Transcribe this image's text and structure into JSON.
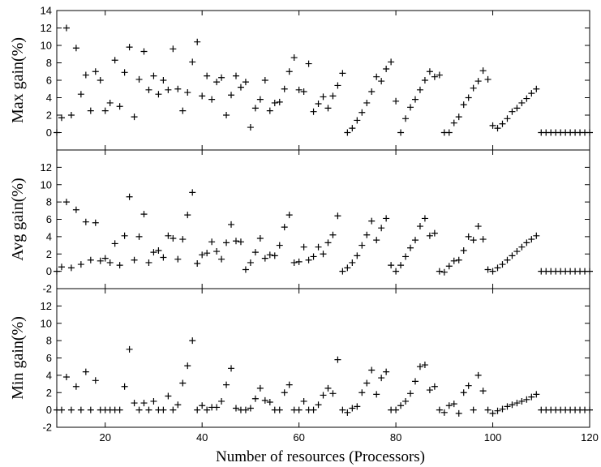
{
  "chart_data": {
    "type": "scatter",
    "xlabel": "Number of resources (Processors)",
    "xlim": [
      10,
      120
    ],
    "x_ticks": [
      20,
      40,
      60,
      80,
      100,
      120
    ],
    "x": [
      10,
      11,
      12,
      13,
      14,
      15,
      16,
      17,
      18,
      19,
      20,
      21,
      22,
      23,
      24,
      25,
      26,
      27,
      28,
      29,
      30,
      31,
      32,
      33,
      34,
      35,
      36,
      37,
      38,
      39,
      40,
      41,
      42,
      43,
      44,
      45,
      46,
      47,
      48,
      49,
      50,
      51,
      52,
      53,
      54,
      55,
      56,
      57,
      58,
      59,
      60,
      61,
      62,
      63,
      64,
      65,
      66,
      67,
      68,
      69,
      70,
      71,
      72,
      73,
      74,
      75,
      76,
      77,
      78,
      79,
      80,
      81,
      82,
      83,
      84,
      85,
      86,
      87,
      88,
      89,
      90,
      91,
      92,
      93,
      94,
      95,
      96,
      97,
      98,
      99,
      100,
      101,
      102,
      103,
      104,
      105,
      106,
      107,
      108,
      109,
      110,
      111,
      112,
      113,
      114,
      115,
      116,
      117,
      118,
      119,
      120
    ],
    "panels": [
      {
        "ylabel": "Max gain(%)",
        "ylim": [
          -2,
          14
        ],
        "y_ticks": [
          0,
          2,
          4,
          6,
          8,
          10,
          12,
          14
        ],
        "y_tick_labels": [
          "0",
          "2",
          "4",
          "6",
          "8",
          "10",
          "12",
          "14"
        ],
        "values": [
          0,
          1.7,
          12,
          2,
          9.7,
          4.4,
          6.6,
          2.5,
          7,
          6,
          2.5,
          3.4,
          8.3,
          3,
          6.9,
          9.8,
          1.8,
          6.1,
          9.3,
          4.9,
          6.5,
          4.4,
          6,
          4.9,
          9.6,
          5,
          2.5,
          4.6,
          8.1,
          10.4,
          4.2,
          6.5,
          3.8,
          5.8,
          6.3,
          2,
          4.3,
          6.5,
          5.2,
          5.8,
          0.6,
          2.8,
          3.8,
          6,
          2.5,
          3.4,
          3.5,
          5,
          7,
          8.6,
          4.9,
          4.7,
          7.9,
          2.4,
          3.3,
          4.1,
          2.8,
          4.2,
          5.4,
          6.8,
          0,
          0.5,
          1.4,
          2.3,
          3.4,
          4.7,
          6.4,
          5.9,
          7.3,
          8.1,
          3.6,
          0,
          1.6,
          2.9,
          3.8,
          4.9,
          6,
          7,
          6.4,
          6.6,
          0,
          0,
          1.1,
          1.8,
          3.2,
          4,
          5.1,
          5.9,
          7.1,
          6.1,
          0.8,
          0.5,
          1,
          1.6,
          2.4,
          2.8,
          3.4,
          3.9,
          4.5,
          5,
          0,
          0,
          0,
          0,
          0,
          0,
          0,
          0,
          0,
          0,
          0
        ]
      },
      {
        "ylabel": "Avg gain(%)",
        "ylim": [
          -2,
          14
        ],
        "y_ticks": [
          0,
          2,
          4,
          6,
          8,
          10,
          12,
          -2
        ],
        "y_tick_labels": [
          "0",
          "2",
          "4",
          "6",
          "8",
          "10",
          "12",
          "-2"
        ],
        "values": [
          0,
          0.5,
          8,
          0.4,
          7.1,
          0.8,
          5.7,
          1.3,
          5.6,
          1.2,
          1.5,
          1,
          3.2,
          0.7,
          4.1,
          8.6,
          1.3,
          4,
          6.6,
          1,
          2.2,
          2.4,
          1.6,
          4.1,
          3.8,
          1.4,
          3.7,
          6.5,
          9.1,
          0.9,
          1.9,
          2.1,
          3.4,
          2.3,
          1.4,
          3.3,
          5.4,
          3.5,
          3.4,
          0.2,
          1,
          2.2,
          3.8,
          1.5,
          1.9,
          1.8,
          3,
          5.1,
          6.5,
          1,
          1.1,
          2.8,
          1.3,
          1.7,
          2.8,
          2,
          3.3,
          4.2,
          6.4,
          0,
          0.4,
          1,
          1.8,
          3,
          4.2,
          5.8,
          3.6,
          5,
          6.1,
          0.7,
          0,
          0.7,
          1.7,
          2.7,
          3.6,
          5.2,
          6.1,
          4.1,
          4.4,
          0,
          -0.1,
          0.6,
          1.2,
          1.3,
          2.4,
          4,
          3.6,
          5.2,
          3.7,
          0.2,
          0,
          0.4,
          0.8,
          1.3,
          1.8,
          2.3,
          2.8,
          3.3,
          3.7,
          4.1,
          0,
          0,
          0,
          0,
          0,
          0,
          0,
          0,
          0,
          0,
          0
        ]
      },
      {
        "ylabel": "Min gain(%)",
        "ylim": [
          -2,
          14
        ],
        "y_ticks": [
          0,
          2,
          4,
          6,
          8,
          10,
          12,
          -2
        ],
        "y_tick_labels": [
          "0",
          "2",
          "4",
          "6",
          "8",
          "10",
          "12",
          "-2"
        ],
        "values": [
          0,
          0,
          3.8,
          0,
          2.7,
          0,
          4.4,
          0,
          3.4,
          0,
          0,
          0,
          0,
          0,
          2.7,
          7,
          0.8,
          0,
          0.8,
          0,
          1,
          0,
          0,
          1.6,
          0,
          0.6,
          3.1,
          5.1,
          8,
          0,
          0.5,
          0,
          0.3,
          0.3,
          1,
          2.9,
          4.8,
          0.2,
          0,
          0,
          0.2,
          1.3,
          2.5,
          1.1,
          0.9,
          0,
          0,
          2,
          2.9,
          0,
          0,
          1,
          0,
          0,
          0.6,
          1.7,
          2.5,
          1.9,
          5.8,
          0,
          -0.3,
          0.2,
          0.4,
          2,
          3.1,
          4.6,
          1.8,
          3.7,
          4.4,
          0,
          0,
          0.5,
          1,
          1.9,
          3.3,
          5,
          5.2,
          2.3,
          2.7,
          0,
          -0.3,
          0.5,
          0.7,
          -0.4,
          2,
          2.8,
          0,
          4,
          2.2,
          0,
          -0.4,
          -0.1,
          0.1,
          0.4,
          0.6,
          0.8,
          1,
          1.2,
          1.5,
          1.8,
          0,
          0,
          0,
          0,
          0,
          0,
          0,
          0,
          0,
          0,
          0
        ]
      }
    ]
  }
}
